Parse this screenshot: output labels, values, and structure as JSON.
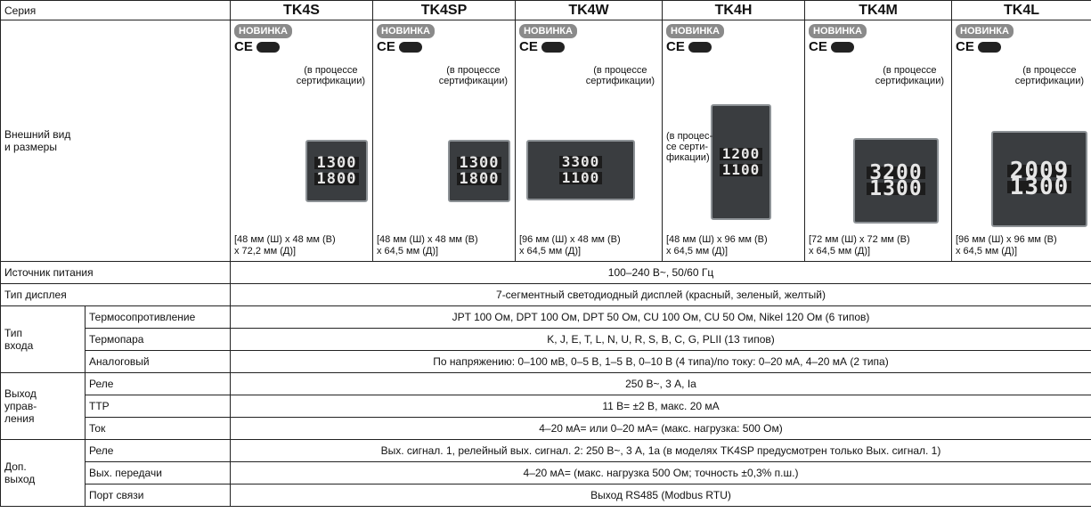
{
  "header": {
    "label": "Серия",
    "models": [
      "TK4S",
      "TK4SP",
      "TK4W",
      "TK4H",
      "TK4M",
      "TK4L"
    ]
  },
  "appearance": {
    "label": "Внешний вид\nи размеры",
    "badge": "НОВИНКА",
    "cert": "CE",
    "models": [
      {
        "cert_note": "(в процессе\nсертификации)",
        "display": [
          "1300",
          "1800"
        ],
        "size": "[48 мм (Ш) x 48 мм (В)\nx 72,2 мм (Д)]"
      },
      {
        "cert_note": "(в процессе\nсертификации)",
        "display": [
          "1300",
          "1800"
        ],
        "size": "[48 мм (Ш) x 48 мм (В)\nx 64,5 мм (Д)]"
      },
      {
        "cert_note": "(в процессе\nсертификации)",
        "display": [
          "3300",
          "1100"
        ],
        "size": "[96 мм (Ш) x 48 мм (В)\nx 64,5 мм (Д)]"
      },
      {
        "cert_note": "(в процес-\nсе серти-\nфикации)",
        "display": [
          "1200",
          "1100"
        ],
        "size": "[48 мм (Ш) x 96 мм (В)\nx 64,5 мм (Д)]"
      },
      {
        "cert_note": "(в процессе\nсертификации)",
        "display": [
          "3200",
          "1300"
        ],
        "size": "[72 мм (Ш) x 72 мм (В)\nx 64,5 мм (Д)]"
      },
      {
        "cert_note": "(в процессе\nсертификации)",
        "display": [
          "2009",
          "1300"
        ],
        "size": "[96 мм (Ш) x 96 мм (В)\nx 64,5 мм (Д)]"
      }
    ]
  },
  "sections": [
    {
      "label": "Источник питания",
      "value": "100–240 В~, 50/60 Гц"
    },
    {
      "label": "Тип дисплея",
      "value": "7-сегментный светодиодный дисплей (красный, зеленый, желтый)"
    },
    {
      "label": "Тип\nвхода",
      "items": [
        {
          "label": "Термосопротивление",
          "value": "JPT 100 Ом, DPT 100 Ом, DPT 50 Ом, CU 100 Ом, CU 50 Ом, Nikel 120 Ом (6 типов)"
        },
        {
          "label": "Термопара",
          "value": "K, J, E, T, L, N, U, R, S, B, C, G, PLII (13 типов)"
        },
        {
          "label": "Аналоговый",
          "value": "По напряжению: 0–100 мВ, 0–5 В, 1–5 В, 0–10 В (4 типа)/по току: 0–20 мА, 4–20 мА (2 типа)"
        }
      ]
    },
    {
      "label": "Выход\nуправ-\nления",
      "items": [
        {
          "label": "Реле",
          "value": "250 В~, 3 А, Ia"
        },
        {
          "label": "ТТР",
          "value": "11 В= ±2 В, макс. 20 мА"
        },
        {
          "label": "Ток",
          "value": "4–20 мА= или 0–20 мА= (макс. нагрузка: 500 Ом)"
        }
      ]
    },
    {
      "label": "Доп.\nвыход",
      "items": [
        {
          "label": "Реле",
          "value": "Вых. сигнал. 1, релейный вых. сигнал. 2: 250 В~, 3 А, 1а (в моделях TK4SP предусмотрен только Вых. сигнал. 1)"
        },
        {
          "label": "Вых. передачи",
          "value": "4–20 мА= (макс. нагрузка 500 Ом; точность ±0,3% п.ш.)"
        },
        {
          "label": "Порт связи",
          "value": "Выход RS485 (Modbus RTU)"
        }
      ]
    }
  ]
}
